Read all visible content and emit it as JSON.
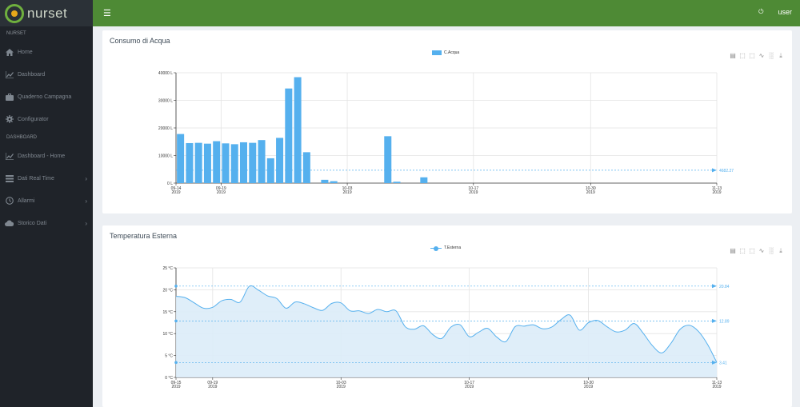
{
  "app": {
    "brand": "nurset"
  },
  "topbar": {
    "menu_icon": "menu-icon",
    "user": "user",
    "power_icon": "power-icon"
  },
  "sidebar": {
    "sections": [
      {
        "label": "NURSET",
        "items": [
          {
            "label": "Home",
            "icon": "home-icon"
          },
          {
            "label": "Dashboard",
            "icon": "chart-icon"
          },
          {
            "label": "Quaderno Campagna",
            "icon": "briefcase-icon"
          },
          {
            "label": "Configurator",
            "icon": "gear-icon"
          }
        ]
      },
      {
        "label": "DASHBOARD",
        "items": [
          {
            "label": "Dashboard - Home",
            "icon": "chart-icon"
          },
          {
            "label": "Dati Real Time",
            "icon": "list-icon",
            "expandable": true
          },
          {
            "label": "Allarmi",
            "icon": "clock-icon",
            "expandable": true
          },
          {
            "label": "Storico Dati",
            "icon": "cloud-icon",
            "expandable": true
          }
        ]
      }
    ]
  },
  "colors": {
    "brand_green": "#4e8a35",
    "series_blue": "#55b0ee",
    "sidebar_bg": "#1f2329"
  },
  "chart_data": [
    {
      "type": "bar",
      "title": "Consumo di Acqua",
      "legend": [
        "C.Acqua"
      ],
      "legend_position": "top-center",
      "ylim": [
        0,
        40000
      ],
      "yticks": [
        "0 L",
        "10000 L",
        "20000 L",
        "30000 L",
        "40000 L"
      ],
      "xticks": [
        {
          "label": "09-14",
          "sub": "2019"
        },
        {
          "label": "09-19",
          "sub": "2019"
        },
        {
          "label": "10-03",
          "sub": "2019"
        },
        {
          "label": "10-17",
          "sub": "2019"
        },
        {
          "label": "10-30",
          "sub": "2019"
        },
        {
          "label": "11-13",
          "sub": "2019"
        }
      ],
      "xrange": [
        "2019-09-14",
        "2019-11-13"
      ],
      "grid": true,
      "series": [
        {
          "name": "C.Acqua",
          "points": [
            {
              "date": "2019-09-14",
              "value": 17800
            },
            {
              "date": "2019-09-15",
              "value": 14500
            },
            {
              "date": "2019-09-16",
              "value": 14600
            },
            {
              "date": "2019-09-17",
              "value": 14300
            },
            {
              "date": "2019-09-18",
              "value": 15200
            },
            {
              "date": "2019-09-19",
              "value": 14400
            },
            {
              "date": "2019-09-20",
              "value": 14100
            },
            {
              "date": "2019-09-21",
              "value": 14800
            },
            {
              "date": "2019-09-22",
              "value": 14600
            },
            {
              "date": "2019-09-23",
              "value": 15600
            },
            {
              "date": "2019-09-24",
              "value": 9000
            },
            {
              "date": "2019-09-25",
              "value": 16400
            },
            {
              "date": "2019-09-26",
              "value": 34300
            },
            {
              "date": "2019-09-27",
              "value": 38400
            },
            {
              "date": "2019-09-28",
              "value": 11200
            },
            {
              "date": "2019-09-30",
              "value": 1200
            },
            {
              "date": "2019-10-01",
              "value": 700
            },
            {
              "date": "2019-10-07",
              "value": 17000
            },
            {
              "date": "2019-10-08",
              "value": 500
            },
            {
              "date": "2019-10-11",
              "value": 2100
            }
          ]
        }
      ],
      "mark_line": {
        "label": "4682.27",
        "value": 4682.27
      }
    },
    {
      "type": "area",
      "title": "Temperatura Esterna",
      "legend": [
        "T.Esterna"
      ],
      "legend_position": "top-center",
      "ylim": [
        0,
        25
      ],
      "yticks": [
        "0 °C",
        "5 °C",
        "10 °C",
        "15 °C",
        "20 °C",
        "25 °C"
      ],
      "xticks": [
        {
          "label": "09-15",
          "sub": "2019"
        },
        {
          "label": "09-19",
          "sub": "2019"
        },
        {
          "label": "10-03",
          "sub": "2019"
        },
        {
          "label": "10-17",
          "sub": "2019"
        },
        {
          "label": "10-30",
          "sub": "2019"
        },
        {
          "label": "11-13",
          "sub": "2019"
        }
      ],
      "xrange": [
        "2019-09-15",
        "2019-11-13"
      ],
      "grid": true,
      "series": [
        {
          "name": "T.Esterna",
          "points": [
            {
              "date": "2019-09-15",
              "value": 18.5
            },
            {
              "date": "2019-09-16",
              "value": 18.2
            },
            {
              "date": "2019-09-17",
              "value": 17.0
            },
            {
              "date": "2019-09-18",
              "value": 15.8
            },
            {
              "date": "2019-09-19",
              "value": 16.0
            },
            {
              "date": "2019-09-20",
              "value": 17.5
            },
            {
              "date": "2019-09-21",
              "value": 17.8
            },
            {
              "date": "2019-09-22",
              "value": 17.2
            },
            {
              "date": "2019-09-23",
              "value": 20.8
            },
            {
              "date": "2019-09-24",
              "value": 19.9
            },
            {
              "date": "2019-09-25",
              "value": 18.6
            },
            {
              "date": "2019-09-26",
              "value": 18.0
            },
            {
              "date": "2019-09-27",
              "value": 15.8
            },
            {
              "date": "2019-09-28",
              "value": 17.2
            },
            {
              "date": "2019-09-29",
              "value": 16.8
            },
            {
              "date": "2019-09-30",
              "value": 15.9
            },
            {
              "date": "2019-10-01",
              "value": 15.3
            },
            {
              "date": "2019-10-02",
              "value": 16.9
            },
            {
              "date": "2019-10-03",
              "value": 17.0
            },
            {
              "date": "2019-10-04",
              "value": 15.2
            },
            {
              "date": "2019-10-05",
              "value": 15.2
            },
            {
              "date": "2019-10-06",
              "value": 14.6
            },
            {
              "date": "2019-10-07",
              "value": 15.5
            },
            {
              "date": "2019-10-08",
              "value": 15.0
            },
            {
              "date": "2019-10-09",
              "value": 15.2
            },
            {
              "date": "2019-10-10",
              "value": 11.6
            },
            {
              "date": "2019-10-11",
              "value": 11.0
            },
            {
              "date": "2019-10-12",
              "value": 11.8
            },
            {
              "date": "2019-10-13",
              "value": 9.8
            },
            {
              "date": "2019-10-14",
              "value": 8.9
            },
            {
              "date": "2019-10-15",
              "value": 11.5
            },
            {
              "date": "2019-10-16",
              "value": 12.0
            },
            {
              "date": "2019-10-17",
              "value": 9.3
            },
            {
              "date": "2019-10-18",
              "value": 10.3
            },
            {
              "date": "2019-10-19",
              "value": 11.2
            },
            {
              "date": "2019-10-20",
              "value": 9.2
            },
            {
              "date": "2019-10-21",
              "value": 8.2
            },
            {
              "date": "2019-10-22",
              "value": 11.6
            },
            {
              "date": "2019-10-23",
              "value": 11.7
            },
            {
              "date": "2019-10-24",
              "value": 12.0
            },
            {
              "date": "2019-10-25",
              "value": 11.1
            },
            {
              "date": "2019-10-26",
              "value": 11.5
            },
            {
              "date": "2019-10-27",
              "value": 13.2
            },
            {
              "date": "2019-10-28",
              "value": 14.2
            },
            {
              "date": "2019-10-29",
              "value": 10.8
            },
            {
              "date": "2019-10-30",
              "value": 12.5
            },
            {
              "date": "2019-10-31",
              "value": 13.0
            },
            {
              "date": "2019-11-01",
              "value": 11.6
            },
            {
              "date": "2019-11-02",
              "value": 10.4
            },
            {
              "date": "2019-11-03",
              "value": 10.8
            },
            {
              "date": "2019-11-04",
              "value": 12.3
            },
            {
              "date": "2019-11-05",
              "value": 10.0
            },
            {
              "date": "2019-11-06",
              "value": 7.2
            },
            {
              "date": "2019-11-07",
              "value": 5.6
            },
            {
              "date": "2019-11-08",
              "value": 7.8
            },
            {
              "date": "2019-11-09",
              "value": 11.0
            },
            {
              "date": "2019-11-10",
              "value": 11.9
            },
            {
              "date": "2019-11-11",
              "value": 10.5
            },
            {
              "date": "2019-11-12",
              "value": 7.5
            },
            {
              "date": "2019-11-13",
              "value": 3.4
            }
          ]
        }
      ],
      "mark_lines": [
        {
          "label": "20.84",
          "value": 20.84
        },
        {
          "label": "12.89",
          "value": 12.89
        },
        {
          "label": "3.41",
          "value": 3.41
        }
      ]
    }
  ]
}
